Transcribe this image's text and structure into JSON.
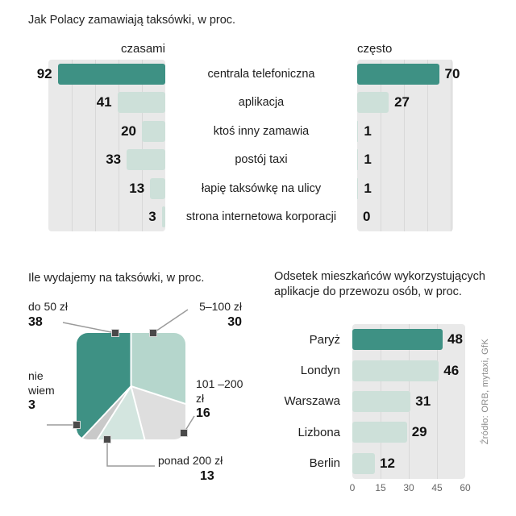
{
  "colors": {
    "accent": "#3e9184",
    "muted": "#cde0d9",
    "panel": "#e9e9e9",
    "gridline": "#d8d8d8"
  },
  "source": "Źródło: ORB, mytaxi, GfK",
  "chart_data": [
    {
      "type": "bar",
      "subtype": "tornado",
      "title": "Jak Polacy zamawiają taksówki, w proc.",
      "categories": [
        "centrala telefoniczna",
        "aplikacja",
        "ktoś inny zamawia",
        "postój taxi",
        "łapię taksówkę na ulicy",
        "strona internetowa korporacji"
      ],
      "series": [
        {
          "name": "czasami",
          "values": [
            92,
            41,
            20,
            33,
            13,
            3
          ]
        },
        {
          "name": "często",
          "values": [
            70,
            27,
            1,
            1,
            1,
            0
          ]
        }
      ],
      "xlim": [
        0,
        100
      ],
      "legend_position": "top",
      "grid": true
    },
    {
      "type": "pie",
      "title": "Ile wydajemy na taksówki, w proc.",
      "slices": [
        {
          "label": "5–100 zł",
          "value": 30,
          "color": "#b5d6cc"
        },
        {
          "label": "101 –200 zł",
          "value": 16,
          "color": "#dedede"
        },
        {
          "label": "ponad 200 zł",
          "value": 13,
          "color": "#d3e5df"
        },
        {
          "label": "nie wiem",
          "value": 3,
          "color": "#c9c9c9"
        },
        {
          "label": "do 50 zł",
          "value": 38,
          "color": "#3e9184"
        }
      ]
    },
    {
      "type": "bar",
      "title": "Odsetek mieszkańców wykorzystujących aplikacje do przewozu osób, w proc.",
      "categories": [
        "Paryż",
        "Londyn",
        "Warszawa",
        "Lizbona",
        "Berlin"
      ],
      "values": [
        48,
        46,
        31,
        29,
        12
      ],
      "xlim": [
        0,
        60
      ],
      "ticks": [
        0,
        15,
        30,
        45,
        60
      ],
      "grid": true
    }
  ]
}
